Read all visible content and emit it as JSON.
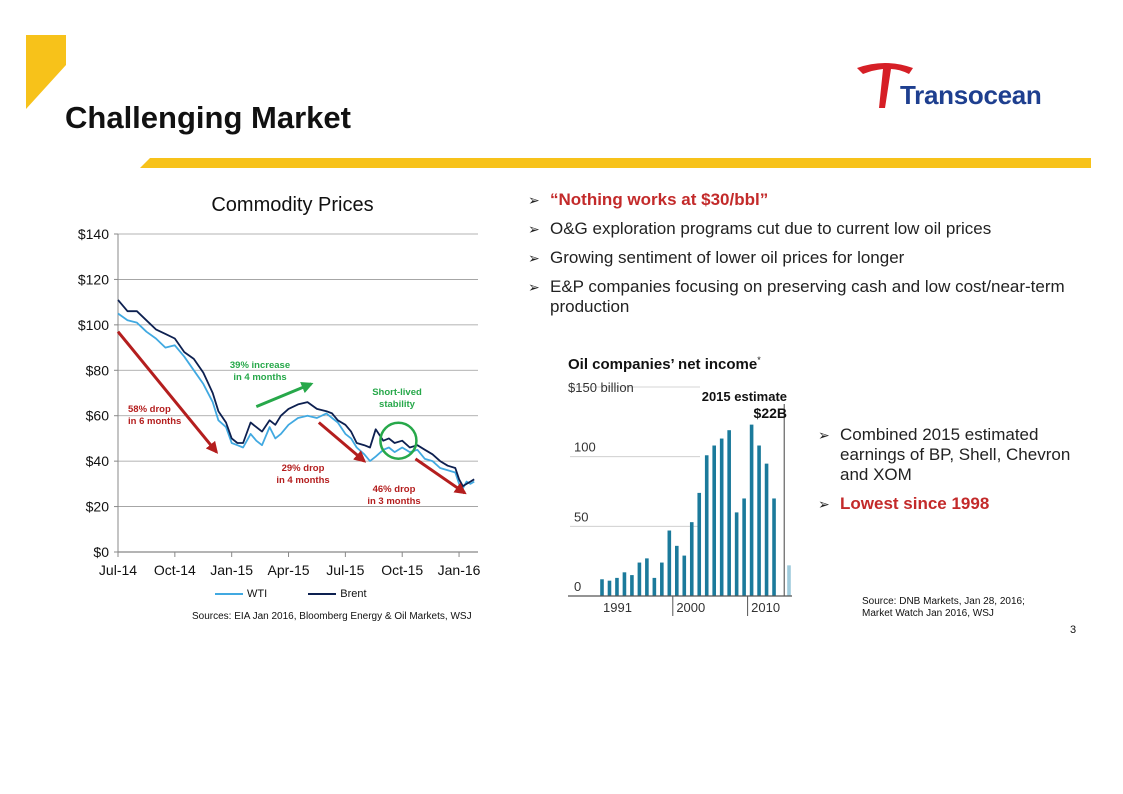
{
  "slide": {
    "title": "Challenging Market",
    "page_number": "3",
    "logo_text": "Transocean",
    "colors": {
      "accent_yellow": "#f7c21a",
      "logo_red": "#d61f26",
      "logo_blue": "#1e3f8f",
      "wti": "#41a9e1",
      "brent": "#0d2050",
      "arrow_red": "#b41e1e",
      "arrow_green": "#27a84a",
      "bar": "#1b7a9b"
    }
  },
  "bullets": [
    {
      "text": "“Nothing works at $30/bbl”",
      "highlight": true
    },
    {
      "text": "O&G exploration programs cut due to current low oil prices",
      "highlight": false
    },
    {
      "text": "Growing sentiment of lower oil prices for longer",
      "highlight": false
    },
    {
      "text": "E&P companies focusing on preserving cash and low cost/near-term production",
      "highlight": false
    }
  ],
  "bullets2": [
    {
      "text": "Combined 2015 estimated earnings of BP, Shell, Chevron and XOM",
      "highlight": false
    },
    {
      "text": "Lowest since 1998",
      "highlight": true
    }
  ],
  "sources": {
    "commodity": "Sources: EIA Jan 2016, Bloomberg Energy & Oil Markets, WSJ",
    "income_line1": "Source: DNB Markets, Jan 28, 2016;",
    "income_line2": "Market Watch Jan 2016, WSJ"
  },
  "chart_data": [
    {
      "type": "line",
      "title": "Commodity Prices",
      "ylim": [
        0,
        140
      ],
      "yticks": [
        0,
        20,
        40,
        60,
        80,
        100,
        120,
        140
      ],
      "ytick_labels": [
        "$0",
        "$20",
        "$40",
        "$60",
        "$80",
        "$100",
        "$120",
        "$140"
      ],
      "xlim": [
        0,
        19
      ],
      "xticks": [
        0,
        3,
        6,
        9,
        12,
        15,
        18
      ],
      "xtick_labels": [
        "Jul-14",
        "Oct-14",
        "Jan-15",
        "Apr-15",
        "Jul-15",
        "Oct-15",
        "Jan-16"
      ],
      "grid": true,
      "legend": "bottom-center",
      "series": [
        {
          "name": "WTI",
          "color": "#41a9e1",
          "x": [
            0,
            0.5,
            1,
            1.5,
            2,
            2.5,
            3,
            3.5,
            4,
            4.5,
            5,
            5.3,
            5.7,
            6,
            6.3,
            6.6,
            7,
            7.3,
            7.6,
            8,
            8.3,
            8.6,
            9,
            9.5,
            10,
            10.5,
            11,
            11.3,
            11.6,
            12,
            12.3,
            12.6,
            13,
            13.3,
            13.6,
            14,
            14.3,
            14.6,
            15,
            15.4,
            15.8,
            16.2,
            16.6,
            17,
            17.4,
            17.8,
            18,
            18.2,
            18.4,
            18.6,
            18.8
          ],
          "y": [
            105,
            102,
            101,
            97,
            94,
            90,
            91,
            86,
            80,
            74,
            66,
            58,
            55,
            48,
            47,
            46,
            52,
            49,
            47,
            55,
            50,
            52,
            56,
            59,
            60,
            59,
            61,
            59,
            57,
            52,
            50,
            46,
            43,
            40,
            42,
            45,
            46,
            44,
            46,
            44,
            45,
            41,
            40,
            37,
            36,
            35,
            30,
            28,
            31,
            30,
            31
          ]
        },
        {
          "name": "Brent",
          "color": "#0d2050",
          "x": [
            0,
            0.5,
            1,
            1.5,
            2,
            2.5,
            3,
            3.5,
            4,
            4.5,
            5,
            5.3,
            5.7,
            6,
            6.3,
            6.6,
            7,
            7.3,
            7.6,
            8,
            8.3,
            8.6,
            9,
            9.5,
            10,
            10.5,
            11,
            11.3,
            11.6,
            12,
            12.3,
            12.6,
            13,
            13.3,
            13.6,
            14,
            14.3,
            14.6,
            15,
            15.4,
            15.8,
            16.2,
            16.6,
            17,
            17.4,
            17.8,
            18,
            18.2,
            18.4,
            18.6,
            18.8
          ],
          "y": [
            111,
            106,
            106,
            102,
            98,
            96,
            94,
            88,
            85,
            79,
            70,
            62,
            57,
            50,
            48,
            48,
            57,
            55,
            53,
            58,
            56,
            60,
            63,
            65,
            66,
            63,
            62,
            61,
            58,
            56,
            53,
            48,
            47,
            46,
            54,
            49,
            50,
            48,
            49,
            46,
            47,
            45,
            43,
            40,
            38,
            37,
            32,
            29,
            30,
            31,
            32
          ]
        }
      ],
      "annotations": [
        {
          "id": "drop58",
          "line1": "58% drop",
          "line2": "in 6 months",
          "color": "#b41e1e",
          "arrow": [
            0,
            97,
            5.2,
            44
          ]
        },
        {
          "id": "rise39",
          "line1": "39% increase",
          "line2": "in 4 months",
          "color": "#27a84a",
          "arrow": [
            7.3,
            64,
            10.2,
            74
          ]
        },
        {
          "id": "drop29",
          "line1": "29% drop",
          "line2": "in 4 months",
          "color": "#b41e1e",
          "arrow": [
            10.6,
            57,
            13,
            40
          ]
        },
        {
          "id": "stability",
          "line1": "Short-lived",
          "line2": "stability",
          "color": "#27a84a",
          "circle": [
            14.8,
            49
          ]
        },
        {
          "id": "drop46",
          "line1": "46% drop",
          "line2": "in 3 months",
          "color": "#b41e1e",
          "arrow": [
            15.7,
            41,
            18.3,
            26
          ]
        }
      ]
    },
    {
      "type": "bar",
      "title": "Oil companies’ net income",
      "title_mark": "*",
      "ylabel_top": "$150 billion",
      "ylim": [
        0,
        150
      ],
      "yticks": [
        0,
        50,
        100,
        150
      ],
      "ytick_labels": [
        "0",
        "50",
        "100",
        ""
      ],
      "xtick_labels": [
        "1991",
        "2000",
        "2010"
      ],
      "xtick_years": [
        1991,
        2000,
        2010
      ],
      "annotation_line1": "2015 estimate",
      "annotation_line2": "$22B",
      "highlight_color": "#9fcbdc",
      "categories": [
        1990,
        1991,
        1992,
        1993,
        1994,
        1995,
        1996,
        1997,
        1998,
        1999,
        2000,
        2001,
        2002,
        2003,
        2004,
        2005,
        2006,
        2007,
        2008,
        2009,
        2010,
        2011,
        2012,
        2013,
        2014,
        2015
      ],
      "values": [
        12,
        11,
        13,
        17,
        15,
        24,
        27,
        13,
        24,
        47,
        36,
        29,
        53,
        74,
        101,
        108,
        113,
        119,
        60,
        70,
        123,
        108,
        95,
        70,
        0,
        22
      ]
    }
  ]
}
